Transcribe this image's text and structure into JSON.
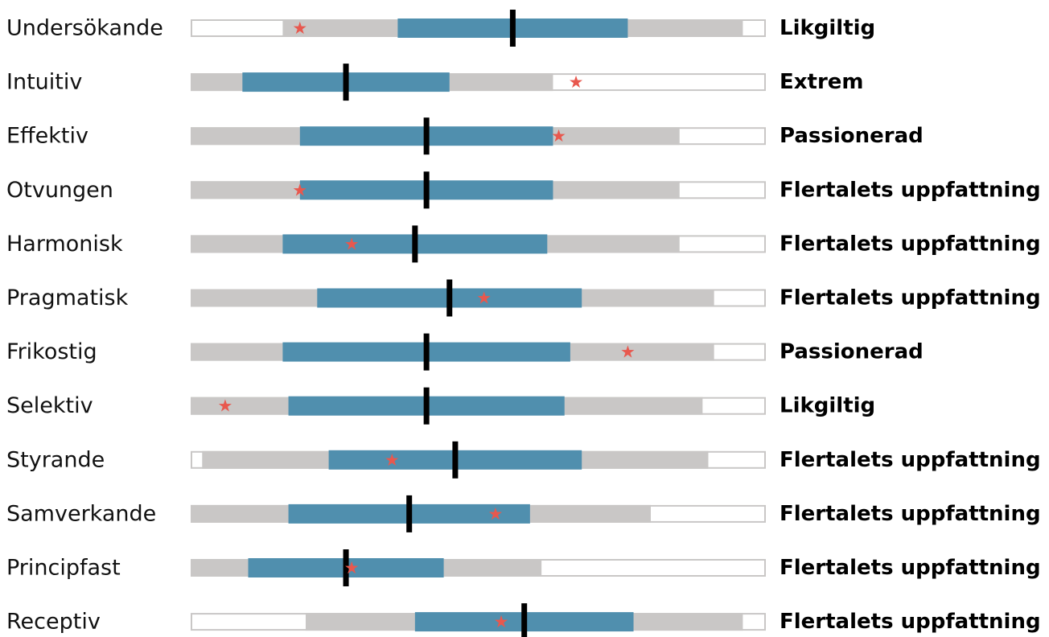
{
  "chart_data": {
    "type": "bar",
    "scale_range": [
      0,
      100
    ],
    "colors": {
      "outer_band": "#c9c7c6",
      "inner_band": "#508fae",
      "border": "#c9c7c6",
      "marker": "#000000",
      "star": "#e8584e"
    },
    "rows": [
      {
        "label": "Undersökande",
        "category": "Likgiltig",
        "outer": [
          16,
          96
        ],
        "inner": [
          36,
          76
        ],
        "marker": 56,
        "star": 19
      },
      {
        "label": "Intuitiv",
        "category": "Extrem",
        "outer": [
          0,
          63
        ],
        "inner": [
          9,
          45
        ],
        "marker": 27,
        "star": 67
      },
      {
        "label": "Effektiv",
        "category": "Passionerad",
        "outer": [
          0,
          85
        ],
        "inner": [
          19,
          63
        ],
        "marker": 41,
        "star": 64
      },
      {
        "label": "Otvungen",
        "category": "Flertalets uppfattning",
        "outer": [
          0,
          85
        ],
        "inner": [
          19,
          63
        ],
        "marker": 41,
        "star": 19
      },
      {
        "label": "Harmonisk",
        "category": "Flertalets uppfattning",
        "outer": [
          0,
          85
        ],
        "inner": [
          16,
          62
        ],
        "marker": 39,
        "star": 28
      },
      {
        "label": "Pragmatisk",
        "category": "Flertalets uppfattning",
        "outer": [
          0,
          91
        ],
        "inner": [
          22,
          68
        ],
        "marker": 45,
        "star": 51
      },
      {
        "label": "Frikostig",
        "category": "Passionerad",
        "outer": [
          0,
          91
        ],
        "inner": [
          16,
          66
        ],
        "marker": 41,
        "star": 76
      },
      {
        "label": "Selektiv",
        "category": "Likgiltig",
        "outer": [
          0,
          89
        ],
        "inner": [
          17,
          65
        ],
        "marker": 41,
        "star": 6
      },
      {
        "label": "Styrande",
        "category": "Flertalets uppfattning",
        "outer": [
          2,
          90
        ],
        "inner": [
          24,
          68
        ],
        "marker": 46,
        "star": 35
      },
      {
        "label": "Samverkande",
        "category": "Flertalets uppfattning",
        "outer": [
          0,
          80
        ],
        "inner": [
          17,
          59
        ],
        "marker": 38,
        "star": 53
      },
      {
        "label": "Principfast",
        "category": "Flertalets uppfattning",
        "outer": [
          0,
          61
        ],
        "inner": [
          10,
          44
        ],
        "marker": 27,
        "star": 28
      },
      {
        "label": "Receptiv",
        "category": "Flertalets uppfattning",
        "outer": [
          20,
          96
        ],
        "inner": [
          39,
          77
        ],
        "marker": 58,
        "star": 54
      }
    ]
  }
}
